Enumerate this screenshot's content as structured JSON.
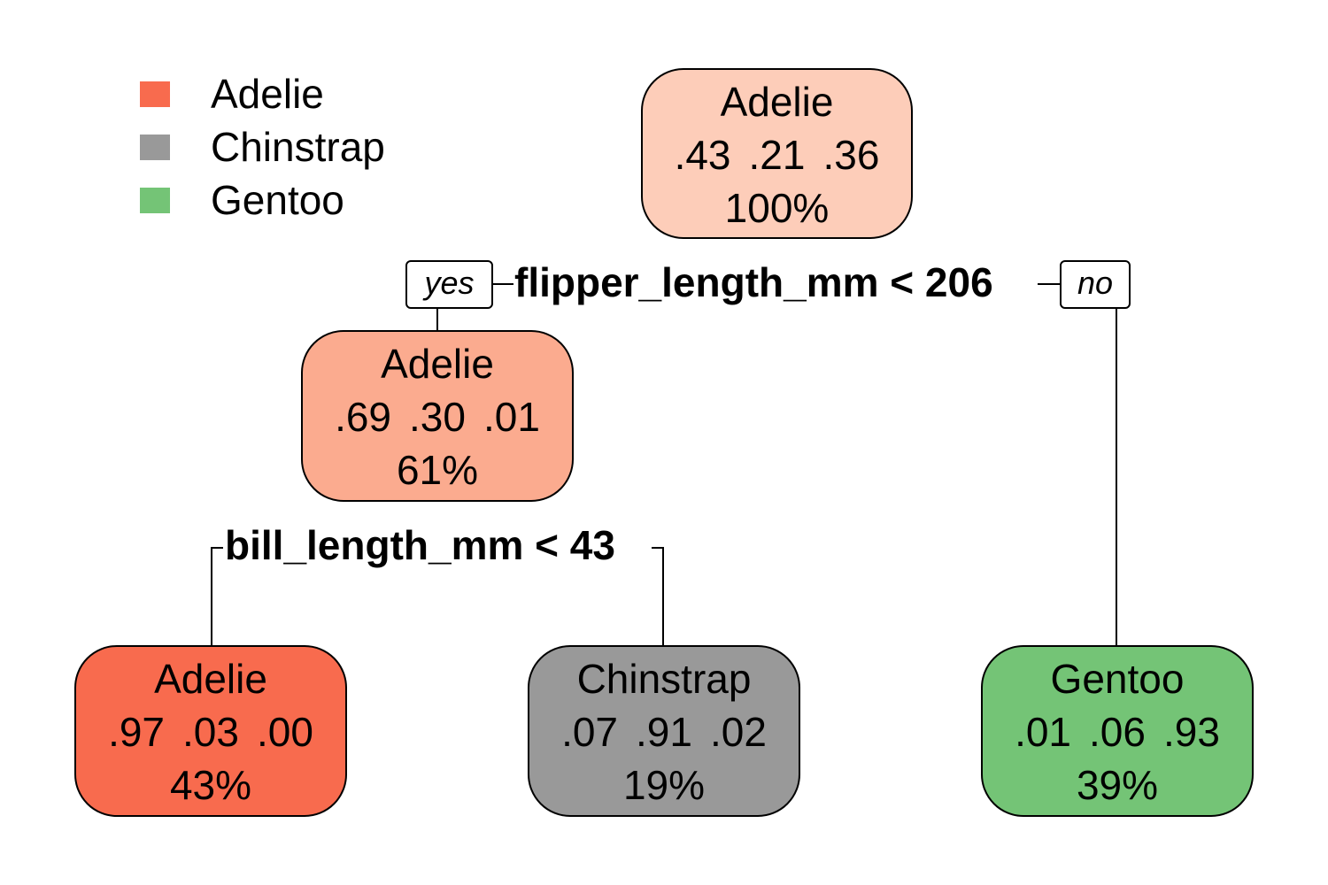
{
  "legend": {
    "items": [
      {
        "label": "Adelie",
        "color": "#f86b4e"
      },
      {
        "label": "Chinstrap",
        "color": "#999999"
      },
      {
        "label": "Gentoo",
        "color": "#74c476"
      }
    ]
  },
  "nodes": {
    "root": {
      "class": "Adelie",
      "probs": [
        ".43",
        ".21",
        ".36"
      ],
      "pct": "100%",
      "color": "#fdcdb9"
    },
    "left": {
      "class": "Adelie",
      "probs": [
        ".69",
        ".30",
        ".01"
      ],
      "pct": "61%",
      "color": "#fbab8f"
    },
    "leaf_ll": {
      "class": "Adelie",
      "probs": [
        ".97",
        ".03",
        ".00"
      ],
      "pct": "43%",
      "color": "#f86b4e"
    },
    "leaf_lr": {
      "class": "Chinstrap",
      "probs": [
        ".07",
        ".91",
        ".02"
      ],
      "pct": "19%",
      "color": "#999999"
    },
    "leaf_r": {
      "class": "Gentoo",
      "probs": [
        ".01",
        ".06",
        ".93"
      ],
      "pct": "39%",
      "color": "#74c476"
    }
  },
  "splits": {
    "root": {
      "label": "flipper_length_mm < 206",
      "yes": "yes",
      "no": "no"
    },
    "left": {
      "label": "bill_length_mm < 43"
    }
  }
}
